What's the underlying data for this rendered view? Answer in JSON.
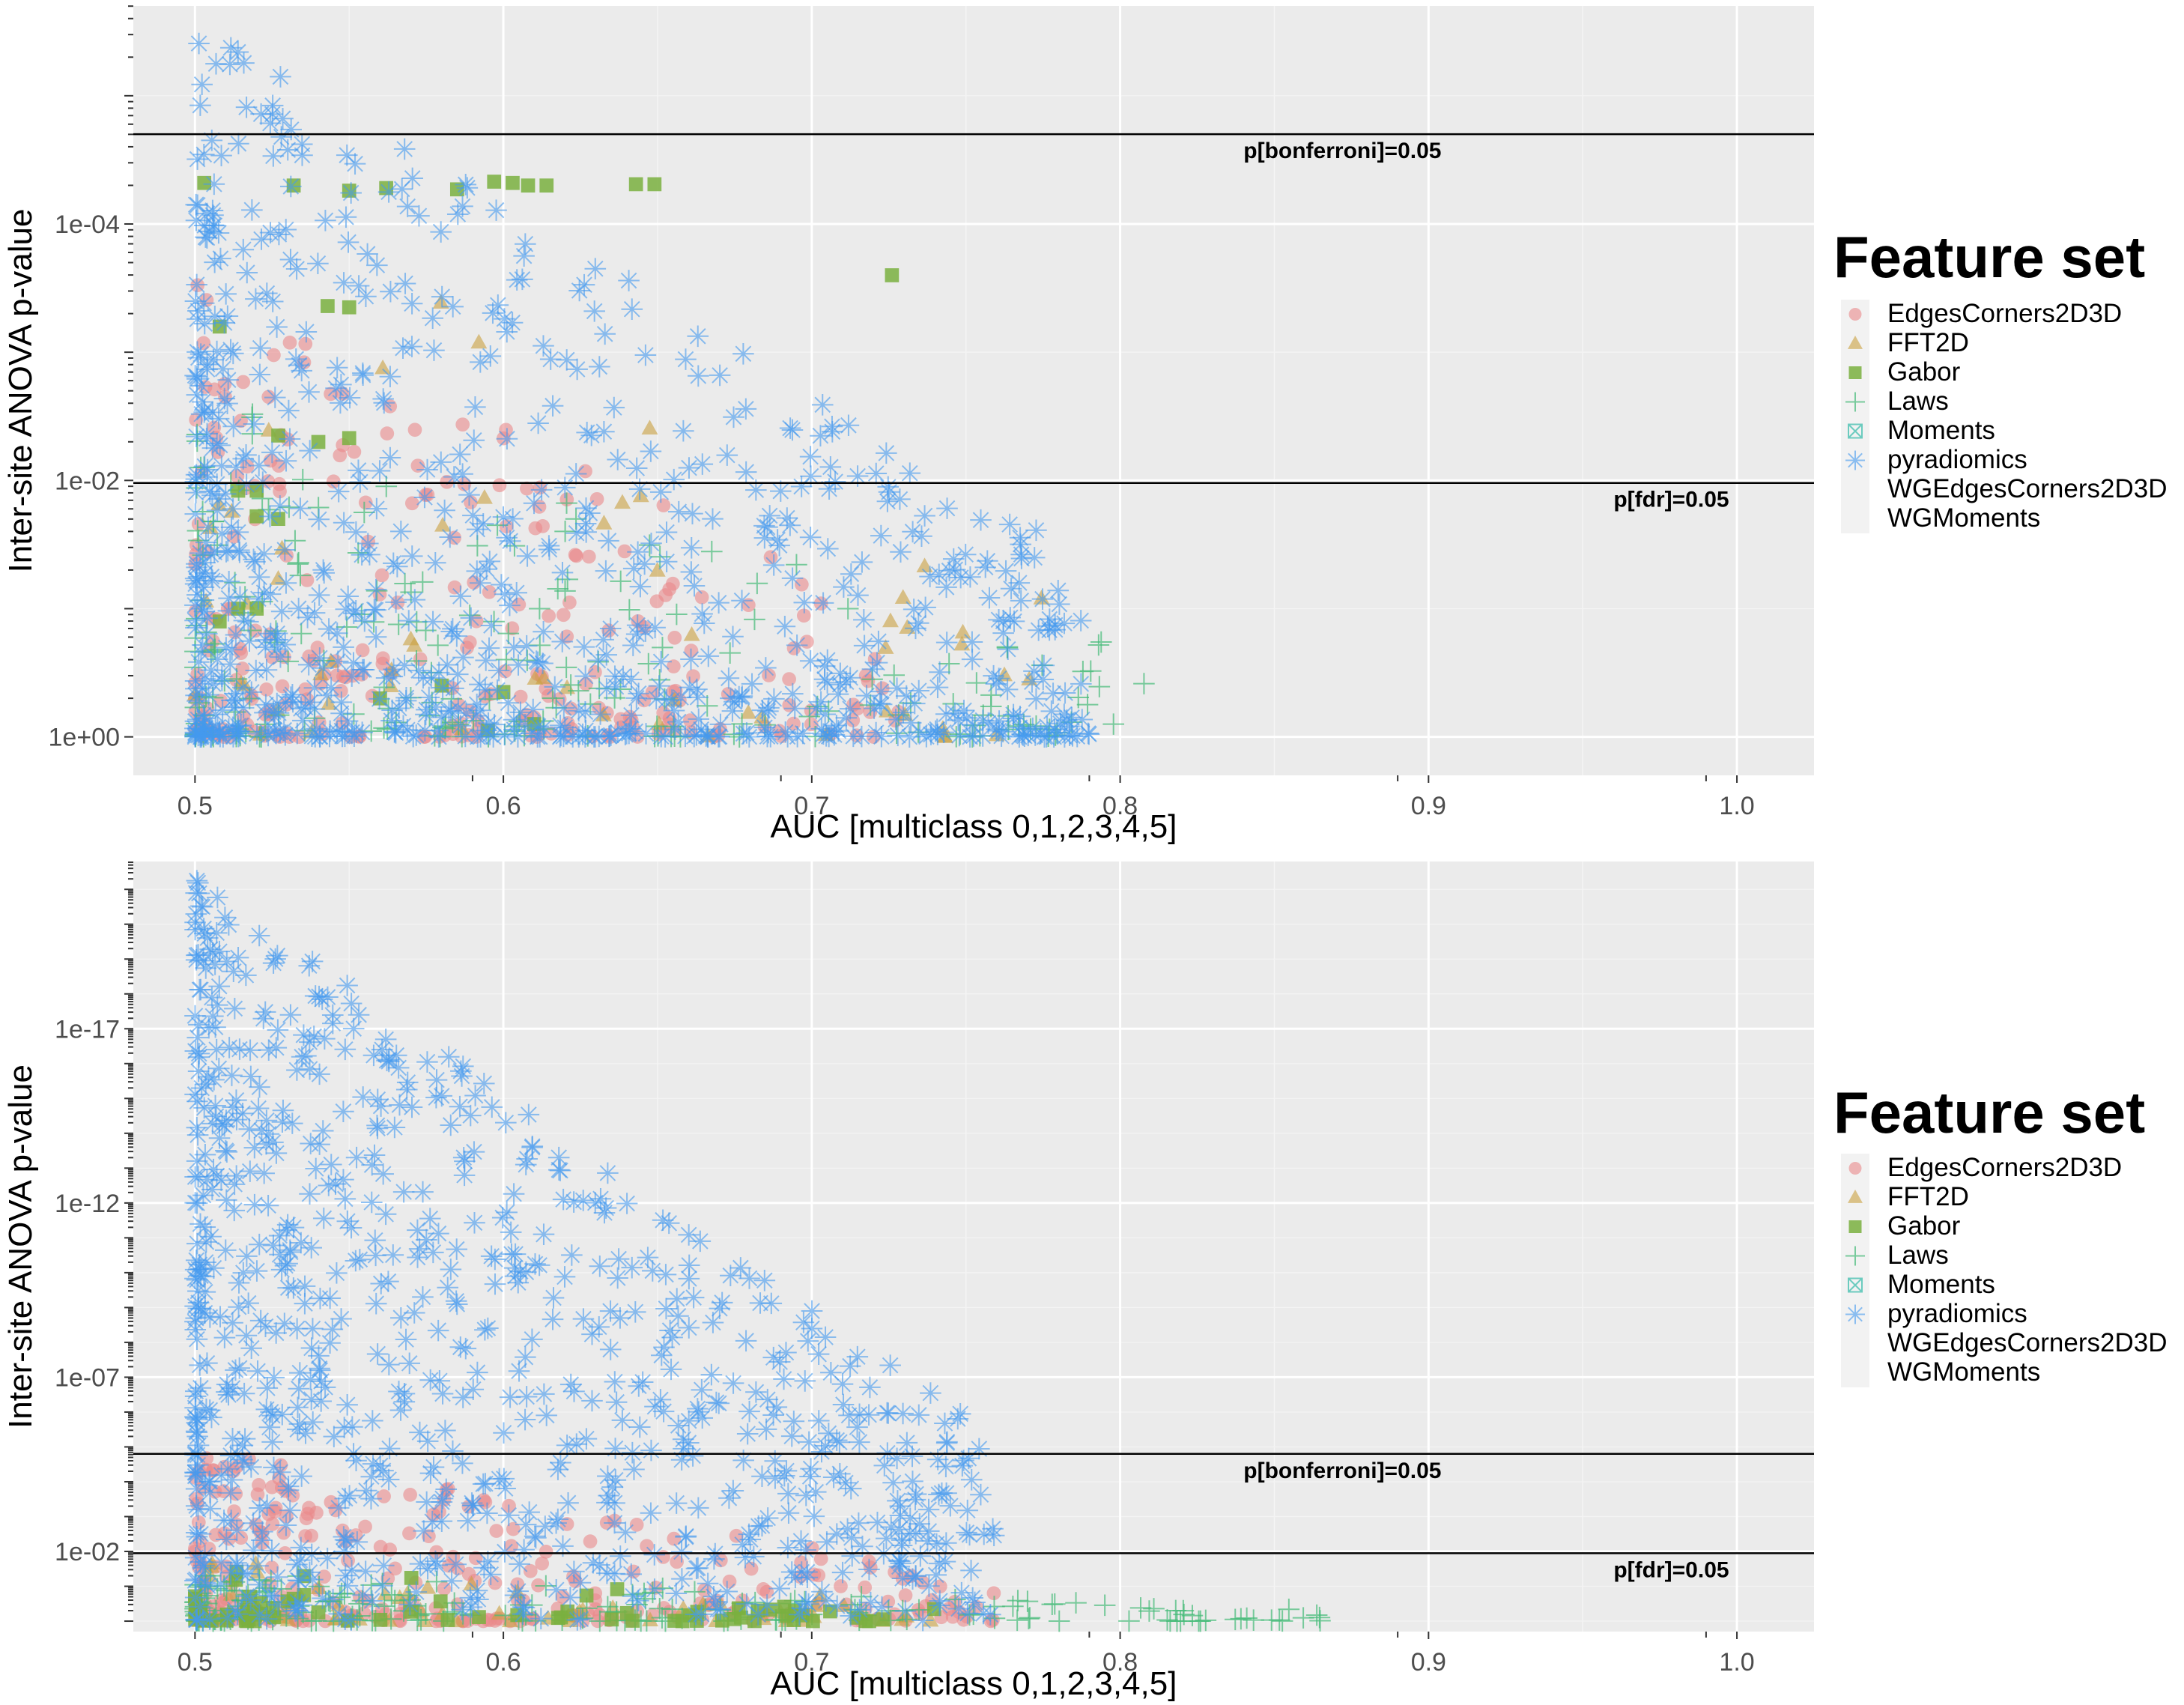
{
  "chart_data": [
    {
      "type": "scatter",
      "id": "top",
      "xlabel": "AUC [multiclass 0,1,2,3,4,5]",
      "ylabel": "Inter-site ANOVA p-value",
      "x_ticks": [
        "0.5",
        "0.6",
        "0.7",
        "0.8",
        "0.9",
        "1.0"
      ],
      "x_tick_values": [
        0.5,
        0.6,
        0.7,
        0.8,
        0.9,
        1.0
      ],
      "xlim": [
        0.48,
        1.025
      ],
      "y_scale": "log10-reversed",
      "y_ticks": [
        "1e-04",
        "1e-02",
        "1e+00"
      ],
      "y_tick_exponents": [
        -4,
        -2,
        0
      ],
      "ylim_exponent": [
        0.3,
        -5.7
      ],
      "thresholds": [
        {
          "label": "p[bonferroni]=0.05",
          "exponent": -4.7,
          "label_x": 0.84
        },
        {
          "label": "p[fdr]=0.05",
          "exponent": -1.98,
          "label_x": 0.96
        }
      ],
      "series": [
        {
          "name": "EdgesCorners2D3D",
          "n": 280,
          "auc_range": [
            0.5,
            0.73
          ],
          "p_exponent_range": [
            -3.6,
            0
          ]
        },
        {
          "name": "FFT2D",
          "n": 60,
          "auc_range": [
            0.5,
            0.78
          ],
          "p_exponent_range": [
            -4.4,
            0
          ]
        },
        {
          "name": "Gabor",
          "points": [
            [
              0.503,
              -4.32
            ],
            [
              0.532,
              -4.3
            ],
            [
              0.55,
              -4.26
            ],
            [
              0.562,
              -4.28
            ],
            [
              0.585,
              -4.27
            ],
            [
              0.597,
              -4.33
            ],
            [
              0.603,
              -4.32
            ],
            [
              0.608,
              -4.3
            ],
            [
              0.614,
              -4.3
            ],
            [
              0.643,
              -4.31
            ],
            [
              0.649,
              -4.31
            ],
            [
              0.726,
              -3.6
            ],
            [
              0.543,
              -3.36
            ],
            [
              0.55,
              -3.35
            ],
            [
              0.508,
              -3.2
            ],
            [
              0.527,
              -2.35
            ],
            [
              0.54,
              -2.3
            ],
            [
              0.55,
              -2.33
            ],
            [
              0.514,
              -1.92
            ],
            [
              0.52,
              -1.92
            ],
            [
              0.52,
              -1.72
            ],
            [
              0.527,
              -1.7
            ],
            [
              0.508,
              -0.9
            ],
            [
              0.514,
              -1.0
            ],
            [
              0.52,
              -1.0
            ],
            [
              0.56,
              -0.3
            ],
            [
              0.6,
              -0.35
            ],
            [
              0.61,
              -0.1
            ],
            [
              0.58,
              -0.4
            ],
            [
              0.595,
              -0.05
            ]
          ]
        },
        {
          "name": "Laws",
          "n": 220,
          "auc_range": [
            0.5,
            0.81
          ],
          "p_exponent_range": [
            -2.8,
            0
          ]
        },
        {
          "name": "Moments",
          "n": 0
        },
        {
          "name": "pyradiomics",
          "n": 900,
          "auc_range": [
            0.5,
            0.79
          ],
          "p_exponent_range": [
            -5.6,
            0
          ]
        },
        {
          "name": "WGEdgesCorners2D3D",
          "n": 0
        },
        {
          "name": "WGMoments",
          "n": 0
        }
      ]
    },
    {
      "type": "scatter",
      "id": "bottom",
      "xlabel": "AUC [multiclass 0,1,2,3,4,5]",
      "ylabel": "Inter-site ANOVA p-value",
      "x_ticks": [
        "0.5",
        "0.6",
        "0.7",
        "0.8",
        "0.9",
        "1.0"
      ],
      "x_tick_values": [
        0.5,
        0.6,
        0.7,
        0.8,
        0.9,
        1.0
      ],
      "xlim": [
        0.48,
        1.025
      ],
      "y_scale": "log10-reversed",
      "y_ticks": [
        "1e-17",
        "1e-12",
        "1e-07",
        "1e-02"
      ],
      "y_tick_exponents": [
        -17,
        -12,
        -7,
        -2
      ],
      "ylim_exponent": [
        0.3,
        -21.8
      ],
      "thresholds": [
        {
          "label": "p[bonferroni]=0.05",
          "exponent": -4.8,
          "label_x": 0.84
        },
        {
          "label": "p[fdr]=0.05",
          "exponent": -1.95,
          "label_x": 0.96
        }
      ],
      "series": [
        {
          "name": "EdgesCorners2D3D",
          "n": 300,
          "auc_range": [
            0.5,
            0.76
          ],
          "p_exponent_range": [
            -5,
            0
          ]
        },
        {
          "name": "FFT2D",
          "n": 60,
          "auc_range": [
            0.5,
            0.74
          ],
          "p_exponent_range": [
            -2,
            0
          ]
        },
        {
          "name": "Gabor",
          "n": 70,
          "auc_range": [
            0.5,
            0.74
          ],
          "p_exponent_range": [
            -1.6,
            0
          ]
        },
        {
          "name": "Laws",
          "n": 220,
          "auc_range": [
            0.5,
            0.87
          ],
          "p_exponent_range": [
            -1.4,
            0
          ]
        },
        {
          "name": "Moments",
          "n": 0
        },
        {
          "name": "pyradiomics",
          "n": 900,
          "auc_range": [
            0.5,
            0.76
          ],
          "p_exponent_range": [
            -21.3,
            0
          ]
        },
        {
          "name": "WGEdgesCorners2D3D",
          "n": 0
        },
        {
          "name": "WGMoments",
          "n": 0
        }
      ]
    }
  ],
  "legend": {
    "title": "Feature set",
    "items": [
      {
        "label": "EdgesCorners2D3D",
        "symbol": "circle",
        "color": "#e9888a"
      },
      {
        "label": "FFT2D",
        "symbol": "triangle",
        "color": "#c9a040"
      },
      {
        "label": "Gabor",
        "symbol": "square",
        "color": "#7ab040"
      },
      {
        "label": "Laws",
        "symbol": "plus",
        "color": "#44bb77"
      },
      {
        "label": "Moments",
        "symbol": "boxx",
        "color": "#33bbaa"
      },
      {
        "label": "pyradiomics",
        "symbol": "asterisk",
        "color": "#4499ee"
      },
      {
        "label": "WGEdgesCorners2D3D",
        "symbol": "none",
        "color": "#cc88dd"
      },
      {
        "label": "WGMoments",
        "symbol": "none",
        "color": "#ee88bb"
      }
    ]
  },
  "colors": {
    "panel_bg": "#ebebeb",
    "grid_major": "#ffffff",
    "threshold_line": "#000000"
  }
}
